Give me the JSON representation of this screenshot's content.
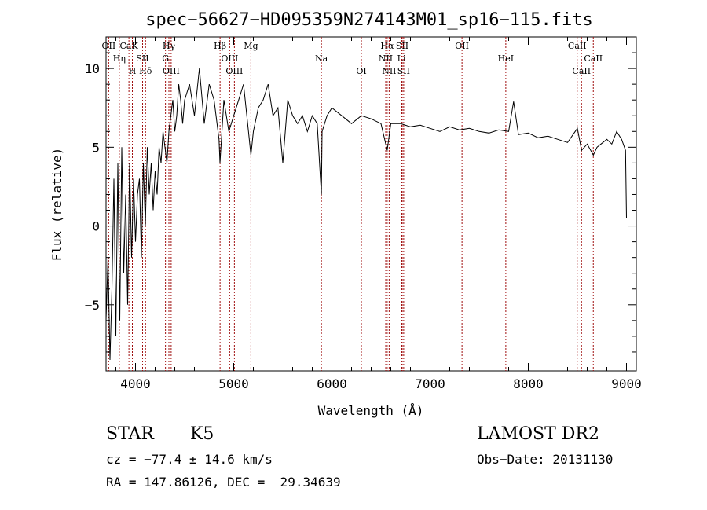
{
  "chart_data": {
    "type": "line",
    "title": "spec−56627−HD095359N274143M01_sp16−115.fits",
    "xlabel": "Wavelength (Å)",
    "ylabel": "Flux (relative)",
    "xlim": [
      3700,
      9100
    ],
    "ylim": [
      -9.2,
      12
    ],
    "xticks": [
      4000,
      5000,
      6000,
      7000,
      8000,
      9000
    ],
    "yticks": [
      -5,
      0,
      5,
      10
    ],
    "xtick_labels": [
      "4000",
      "5000",
      "6000",
      "7000",
      "8000",
      "9000"
    ],
    "ytick_labels": [
      "−5",
      "0",
      "5",
      "10"
    ],
    "grid": false,
    "series": [
      {
        "x": [
          3700,
          3720,
          3740,
          3760,
          3780,
          3800,
          3820,
          3840,
          3860,
          3880,
          3900,
          3920,
          3940,
          3960,
          3980,
          4000,
          4020,
          4040,
          4060,
          4080,
          4100,
          4120,
          4140,
          4160,
          4180,
          4200,
          4220,
          4240,
          4260,
          4280,
          4300,
          4320,
          4340,
          4360,
          4380,
          4400,
          4420,
          4440,
          4460,
          4480,
          4500,
          4550,
          4600,
          4650,
          4700,
          4750,
          4800,
          4850,
          4860,
          4900,
          4950,
          5000,
          5050,
          5100,
          5150,
          5175,
          5200,
          5250,
          5300,
          5350,
          5400,
          5450,
          5500,
          5550,
          5600,
          5650,
          5700,
          5750,
          5800,
          5850,
          5893,
          5900,
          5950,
          6000,
          6100,
          6200,
          6300,
          6400,
          6500,
          6563,
          6600,
          6700,
          6800,
          6900,
          7000,
          7100,
          7200,
          7300,
          7400,
          7500,
          7600,
          7700,
          7800,
          7850,
          7900,
          8000,
          8100,
          8200,
          8300,
          8400,
          8500,
          8542,
          8600,
          8662,
          8700,
          8800,
          8850,
          8900,
          8950,
          8990,
          9000
        ],
        "y": [
          -6,
          -2,
          -8.5,
          -4,
          3,
          -7,
          4,
          -6,
          5,
          -3,
          2,
          -5,
          4,
          -2,
          3,
          -1,
          2,
          3,
          -2,
          4,
          0,
          5,
          2,
          4,
          1,
          3.5,
          2,
          5,
          4,
          6,
          5,
          4,
          6,
          7,
          8,
          6,
          7,
          9,
          8,
          6.5,
          8,
          9,
          7,
          10,
          6.5,
          9,
          8,
          5.5,
          4,
          8,
          6,
          7,
          8,
          9,
          6,
          4.5,
          6,
          7.5,
          8,
          9,
          7,
          7.5,
          4,
          8,
          7,
          6.5,
          7,
          6,
          7,
          6.5,
          2,
          6,
          7,
          7.5,
          7,
          6.5,
          7,
          6.8,
          6.5,
          4.8,
          6.5,
          6.5,
          6.3,
          6.4,
          6.2,
          6,
          6.3,
          6.1,
          6.2,
          6,
          5.9,
          6.1,
          6,
          7.9,
          5.8,
          5.9,
          5.6,
          5.7,
          5.5,
          5.3,
          6.2,
          4.8,
          5.2,
          4.5,
          5,
          5.5,
          5.2,
          6,
          5.5,
          4.8,
          0.5
        ]
      }
    ],
    "line_markers": [
      {
        "label": "OII",
        "wavelength": 3727
      },
      {
        "label": "Hη",
        "wavelength": 3835
      },
      {
        "label": "H",
        "wavelength": 3968
      },
      {
        "label": "CaK",
        "wavelength": 3933
      },
      {
        "label": "SII",
        "wavelength": 4072
      },
      {
        "label": "Hδ",
        "wavelength": 4102
      },
      {
        "label": "Hγ",
        "wavelength": 4340
      },
      {
        "label": "G",
        "wavelength": 4305
      },
      {
        "label": "OIII",
        "wavelength": 4363
      },
      {
        "label": "Hβ",
        "wavelength": 4861
      },
      {
        "label": "OIII",
        "wavelength": 4959
      },
      {
        "label": "OIII",
        "wavelength": 5007
      },
      {
        "label": "Mg",
        "wavelength": 5175
      },
      {
        "label": "Na",
        "wavelength": 5893
      },
      {
        "label": "OI",
        "wavelength": 6300
      },
      {
        "label": "Hα",
        "wavelength": 6563
      },
      {
        "label": "NII",
        "wavelength": 6548
      },
      {
        "label": "NII",
        "wavelength": 6583
      },
      {
        "label": "SII",
        "wavelength": 6716
      },
      {
        "label": "Li",
        "wavelength": 6708
      },
      {
        "label": "SII",
        "wavelength": 6731
      },
      {
        "label": "OII",
        "wavelength": 7325
      },
      {
        "label": "HeI",
        "wavelength": 7771
      },
      {
        "label": "CaII",
        "wavelength": 8542
      },
      {
        "label": "CaII",
        "wavelength": 8498
      },
      {
        "label": "CaII",
        "wavelength": 8662
      }
    ]
  },
  "info": {
    "object_class": "STAR",
    "subclass": "K5",
    "survey": "LAMOST DR2",
    "cz": "cz = −77.4 ± 14.6 km/s",
    "obs_date": "Obs−Date: 20131130",
    "radec": "RA = 147.86126, DEC =  29.34639"
  }
}
